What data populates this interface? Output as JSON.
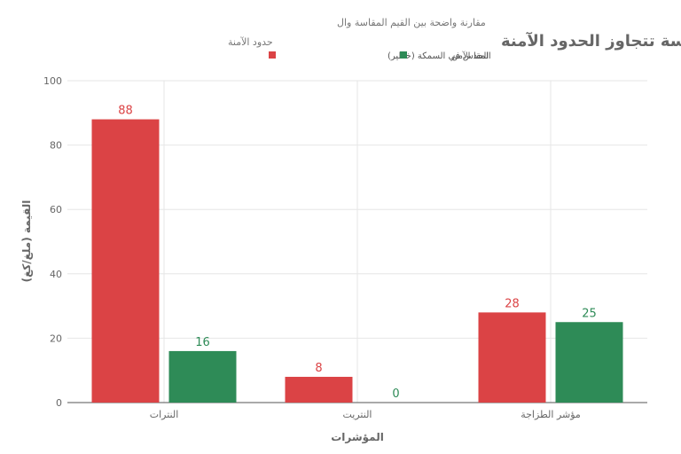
{
  "chart_data": {
    "type": "bar",
    "title": "القيم المقاسة تتجاوز الحدود الآمنة",
    "subtitle_line1": "مقارنة واضحة بين القيم المقاسة وال",
    "subtitle_line2": "حدود الآمنة",
    "xlabel": "المؤشرات",
    "ylabel": "القيمة (ملغ/كغ)",
    "categories": [
      "النترات",
      "النتريت",
      "مؤشر الطزاجة"
    ],
    "series": [
      {
        "name": "المقاس في السمكة (خطير)",
        "color": "#db4345",
        "values": [
          88,
          8,
          28
        ]
      },
      {
        "name": "الحد الآمن",
        "color": "#2e8b57",
        "values": [
          16,
          0,
          25
        ]
      }
    ],
    "ylim": [
      0,
      100
    ],
    "yticks": [
      0,
      20,
      40,
      60,
      80,
      100
    ],
    "grid": true,
    "legend_position": "top"
  }
}
